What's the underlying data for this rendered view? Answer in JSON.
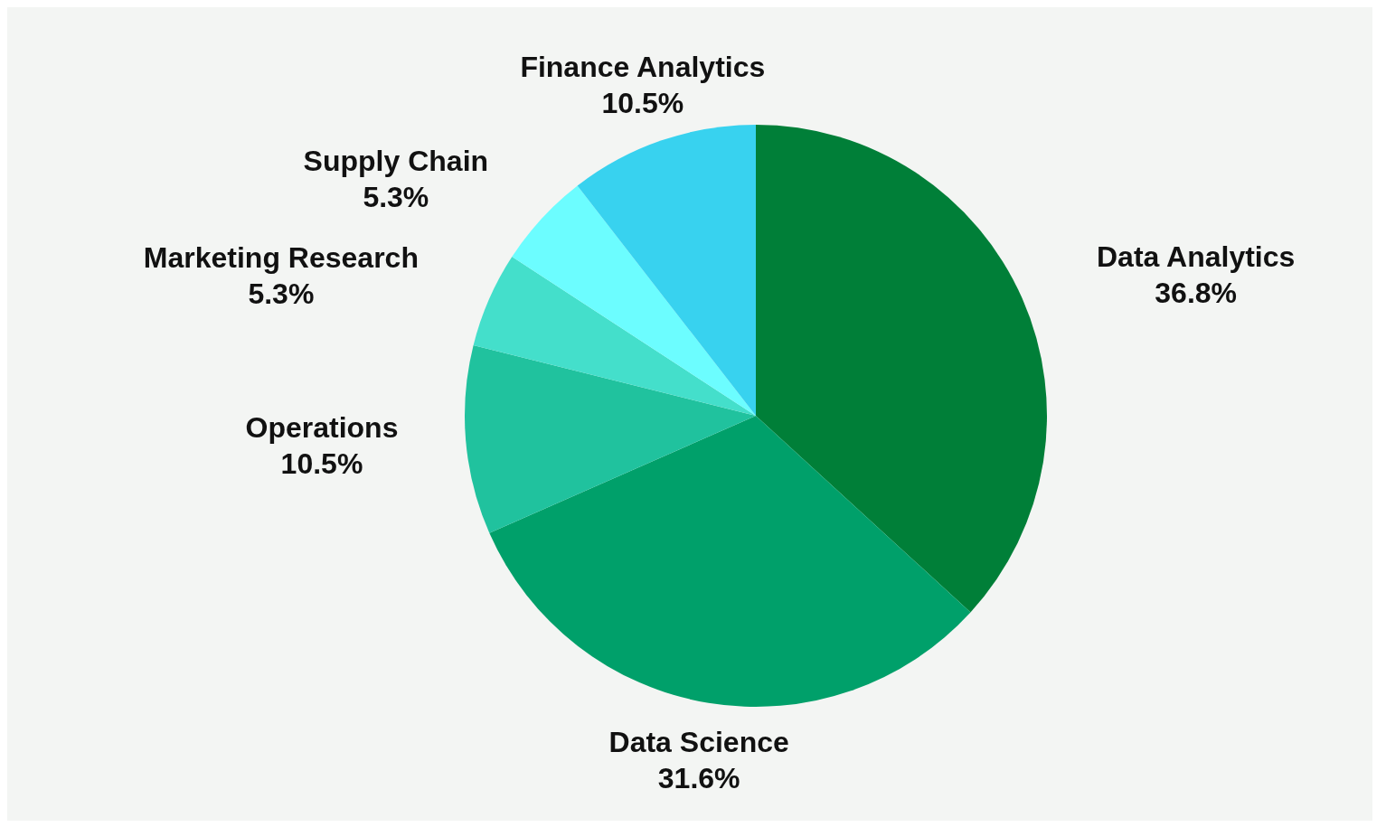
{
  "chart_data": {
    "type": "pie",
    "categories": [
      "Data Analytics",
      "Data Science",
      "Operations",
      "Marketing Research",
      "Supply Chain",
      "Finance Analytics"
    ],
    "values": [
      36.8,
      31.6,
      10.5,
      5.3,
      5.3,
      10.5
    ],
    "colors": [
      "#007f38",
      "#00a06a",
      "#20c29e",
      "#44dfcb",
      "#6cfdff",
      "#38d2ef"
    ],
    "value_labels": [
      "36.8%",
      "31.6%",
      "10.5%",
      "5.3%",
      "5.3%",
      "10.5%"
    ]
  }
}
